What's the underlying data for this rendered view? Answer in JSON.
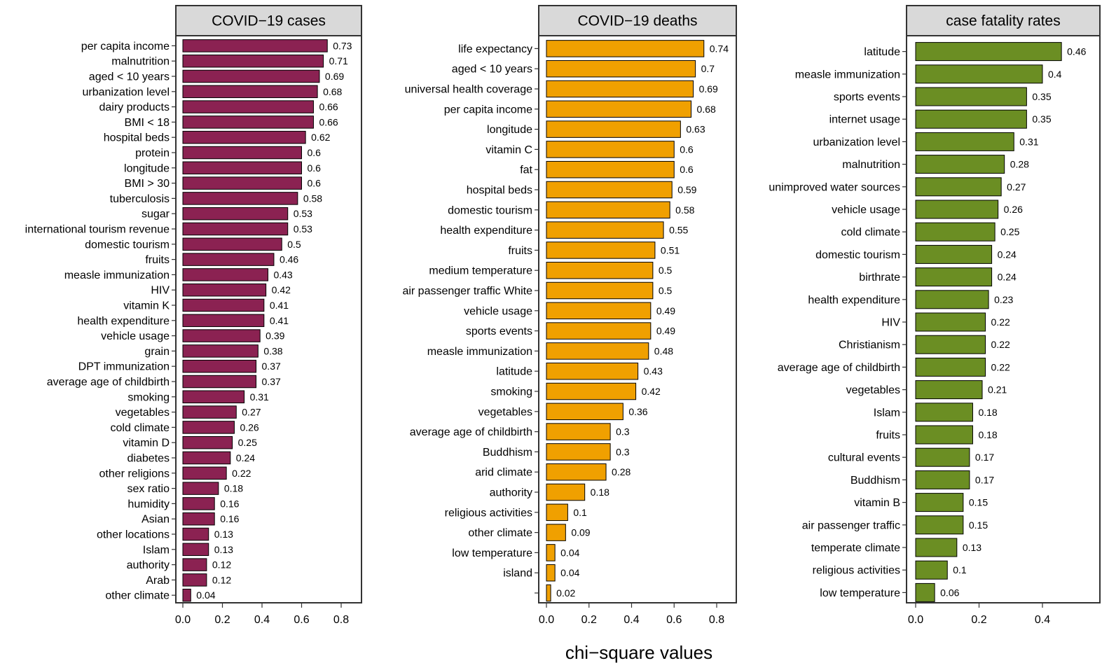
{
  "figure": {
    "xlabel": "chi−square values"
  },
  "chart_data": [
    {
      "type": "bar",
      "orientation": "horizontal",
      "title": "COVID−19 cases",
      "color": "#8B2252",
      "xlim": [
        0,
        0.9
      ],
      "xticks": [
        "0.0",
        "0.2",
        "0.4",
        "0.6",
        "0.8"
      ],
      "xtick_values": [
        0,
        0.2,
        0.4,
        0.6,
        0.8
      ],
      "categories": [
        "per capita income",
        "malnutrition",
        "aged < 10 years",
        "urbanization level",
        "dairy products",
        "BMI < 18",
        "hospital beds",
        "protein",
        "longitude",
        "BMI > 30",
        "tuberculosis",
        "sugar",
        "international tourism revenue",
        "domestic tourism",
        "fruits",
        "measle immunization",
        "HIV",
        "vitamin K",
        "health expenditure",
        "vehicle usage",
        "grain",
        "DPT immunization",
        "average age of childbirth",
        "smoking",
        "vegetables",
        "cold climate",
        "vitamin D",
        "diabetes",
        "other religions",
        "sex ratio",
        "humidity",
        "Asian",
        "other locations",
        "Islam",
        "authority",
        "Arab",
        "other climate"
      ],
      "values": [
        0.73,
        0.71,
        0.69,
        0.68,
        0.66,
        0.66,
        0.62,
        0.6,
        0.6,
        0.6,
        0.58,
        0.53,
        0.53,
        0.5,
        0.46,
        0.43,
        0.42,
        0.41,
        0.41,
        0.39,
        0.38,
        0.37,
        0.37,
        0.31,
        0.27,
        0.26,
        0.25,
        0.24,
        0.22,
        0.18,
        0.16,
        0.16,
        0.13,
        0.13,
        0.12,
        0.12,
        0.04
      ],
      "value_labels": [
        "0.73",
        "0.71",
        "0.69",
        "0.68",
        "0.66",
        "0.66",
        "0.62",
        "0.6",
        "0.6",
        "0.6",
        "0.58",
        "0.53",
        "0.53",
        "0.5",
        "0.46",
        "0.43",
        "0.42",
        "0.41",
        "0.41",
        "0.39",
        "0.38",
        "0.37",
        "0.37",
        "0.31",
        "0.27",
        "0.26",
        "0.25",
        "0.24",
        "0.22",
        "0.18",
        "0.16",
        "0.16",
        "0.13",
        "0.13",
        "0.12",
        "0.12",
        "0.04"
      ]
    },
    {
      "type": "bar",
      "orientation": "horizontal",
      "title": "COVID−19 deaths",
      "color": "#F0A000",
      "xlim": [
        0,
        0.9
      ],
      "xticks": [
        "0.0",
        "0.2",
        "0.4",
        "0.6",
        "0.8"
      ],
      "xtick_values": [
        0,
        0.2,
        0.4,
        0.6,
        0.8
      ],
      "categories": [
        "life expectancy",
        "aged < 10 years",
        "universal health coverage",
        "per capita income",
        "longitude",
        "vitamin C",
        "fat",
        "hospital beds",
        "domestic tourism",
        "health expenditure",
        "fruits",
        "medium temperature",
        "air passenger traffic White",
        "vehicle usage",
        "sports events",
        "measle immunization",
        "latitude",
        "smoking",
        "vegetables",
        "average age of childbirth",
        "Buddhism",
        "arid climate",
        "authority",
        "religious activities",
        "other climate",
        "low temperature",
        "island",
        ""
      ],
      "values": [
        0.74,
        0.7,
        0.69,
        0.68,
        0.63,
        0.6,
        0.6,
        0.59,
        0.58,
        0.55,
        0.51,
        0.5,
        0.5,
        0.49,
        0.49,
        0.48,
        0.43,
        0.42,
        0.36,
        0.3,
        0.3,
        0.28,
        0.18,
        0.1,
        0.09,
        0.04,
        0.04,
        0.02
      ],
      "value_labels": [
        "0.74",
        "0.7",
        "0.69",
        "0.68",
        "0.63",
        "0.6",
        "0.6",
        "0.59",
        "0.58",
        "0.55",
        "0.51",
        "0.5",
        "0.5",
        "0.49",
        "0.49",
        "0.48",
        "0.43",
        "0.42",
        "0.36",
        "0.3",
        "0.3",
        "0.28",
        "0.18",
        "0.1",
        "0.09",
        "0.04",
        "0.04",
        "0.02"
      ]
    },
    {
      "type": "bar",
      "orientation": "horizontal",
      "title": "case fatality rates",
      "color": "#6B8E23",
      "xlim": [
        0,
        0.56
      ],
      "xticks": [
        "0.0",
        "0.2",
        "0.4"
      ],
      "xtick_values": [
        0,
        0.2,
        0.4
      ],
      "categories": [
        "latitude",
        "measle immunization",
        "sports events",
        "internet usage",
        "urbanization level",
        "malnutrition",
        "unimproved water sources",
        "vehicle usage",
        "cold climate",
        "domestic tourism",
        "birthrate",
        "health expenditure",
        "HIV",
        "Christianism",
        "average age of childbirth",
        "vegetables",
        "Islam",
        "fruits",
        "cultural events",
        "Buddhism",
        "vitamin B",
        "air passenger traffic",
        "temperate climate",
        "religious activities",
        "low temperature"
      ],
      "values": [
        0.46,
        0.4,
        0.35,
        0.35,
        0.31,
        0.28,
        0.27,
        0.26,
        0.25,
        0.24,
        0.24,
        0.23,
        0.22,
        0.22,
        0.22,
        0.21,
        0.18,
        0.18,
        0.17,
        0.17,
        0.15,
        0.15,
        0.13,
        0.1,
        0.06
      ],
      "value_labels": [
        "0.46",
        "0.4",
        "0.35",
        "0.35",
        "0.31",
        "0.28",
        "0.27",
        "0.26",
        "0.25",
        "0.24",
        "0.24",
        "0.23",
        "0.22",
        "0.22",
        "0.22",
        "0.21",
        "0.18",
        "0.18",
        "0.17",
        "0.17",
        "0.15",
        "0.15",
        "0.13",
        "0.1",
        "0.06"
      ]
    }
  ]
}
